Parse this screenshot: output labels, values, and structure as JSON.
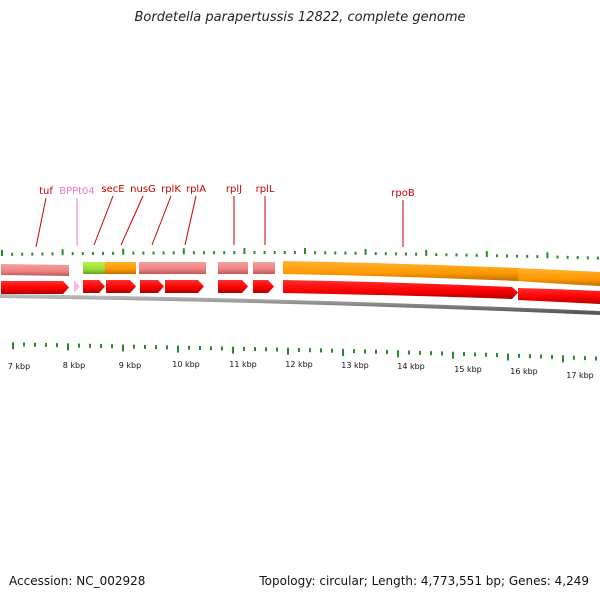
{
  "title": "Bordetella parapertussis 12822, complete genome",
  "footer": {
    "accession": "Accession: NC_002928",
    "summary": "Topology: circular; Length: 4,773,551 bp; Genes: 4,249"
  },
  "colors": {
    "gene_label": "#cc0000",
    "trna_label": "#ee77bb",
    "cds_arrow": "#ff0000",
    "cds_arrow_dark": "#cc0000",
    "feature_pink": "#f08888",
    "feature_orange": "#ff9900",
    "feature_green": "#99dd33",
    "trna_arrow": "#f7b8e2",
    "backbone": "#888888",
    "tick": "#2a8a2a"
  },
  "genes": [
    {
      "name": "tuf",
      "type": "gene"
    },
    {
      "name": "BPPt04",
      "type": "tRNA"
    },
    {
      "name": "secE",
      "type": "gene"
    },
    {
      "name": "nusG",
      "type": "gene"
    },
    {
      "name": "rplK",
      "type": "gene"
    },
    {
      "name": "rplA",
      "type": "gene"
    },
    {
      "name": "rplJ",
      "type": "gene"
    },
    {
      "name": "rplL",
      "type": "gene"
    },
    {
      "name": "rpoB",
      "type": "gene"
    }
  ],
  "scale_labels": [
    "7 kbp",
    "8 kbp",
    "9 kbp",
    "10 kbp",
    "11 kbp",
    "12 kbp",
    "13 kbp",
    "14 kbp",
    "15 kbp",
    "16 kbp",
    "17 kbp"
  ]
}
